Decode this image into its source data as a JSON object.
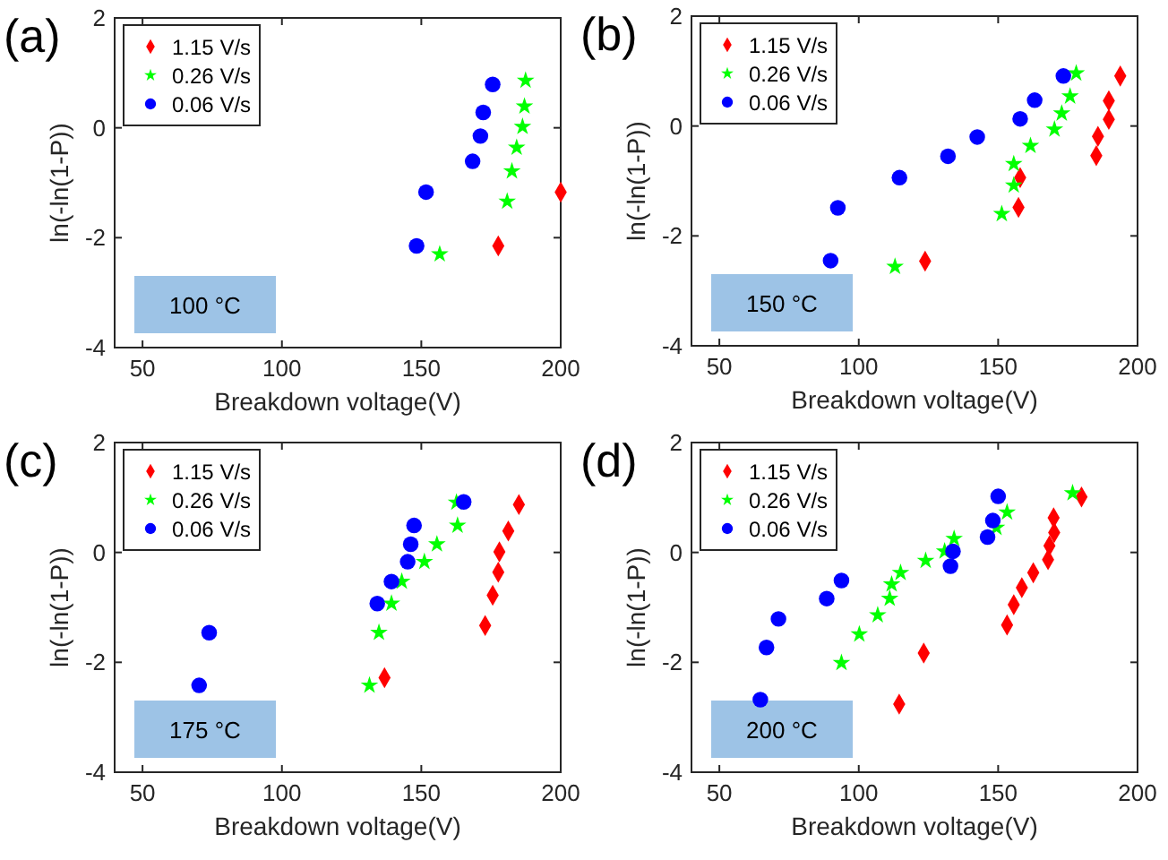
{
  "chart_data": [
    {
      "type": "scatter",
      "title": "(a)",
      "xlabel": "Breakdown voltage(V)",
      "ylabel": "ln(-ln(1-P))",
      "xlim": [
        40,
        200
      ],
      "ylim": [
        -4,
        2
      ],
      "xticks": [
        50,
        100,
        150,
        200
      ],
      "yticks": [
        -4,
        -2,
        0,
        2
      ],
      "legend": "top left",
      "grid": false,
      "annotations": [
        "100 °C"
      ],
      "series": [
        {
          "name": "1.15 V/s",
          "color": "#ff0000",
          "marker": "diamond",
          "x": [
            177.6,
            200
          ],
          "values": [
            -2.15,
            -1.17
          ]
        },
        {
          "name": "0.26 V/s",
          "color": "#00ff00",
          "marker": "star",
          "x": [
            156.6,
            180.8,
            182.5,
            184.2,
            186.3,
            187,
            187.4
          ],
          "values": [
            -2.3,
            -1.34,
            -0.79,
            -0.36,
            0.02,
            0.39,
            0.86
          ]
        },
        {
          "name": "0.06 V/s",
          "color": "#0000ff",
          "marker": "circle",
          "x": [
            148.3,
            151.7,
            168.4,
            171.2,
            172.2,
            175.6
          ],
          "values": [
            -2.15,
            -1.17,
            -0.61,
            -0.15,
            0.28,
            0.79
          ]
        }
      ]
    },
    {
      "type": "scatter",
      "title": "(b)",
      "xlabel": "Breakdown voltage(V)",
      "ylabel": "ln(-ln(1-P))",
      "xlim": [
        40,
        200
      ],
      "ylim": [
        -4,
        2
      ],
      "xticks": [
        50,
        100,
        150,
        200
      ],
      "yticks": [
        -4,
        -2,
        0,
        2
      ],
      "legend": "top left",
      "grid": false,
      "annotations": [
        "150 °C"
      ],
      "series": [
        {
          "name": "1.15 V/s",
          "color": "#ff0000",
          "marker": "diamond",
          "x": [
            123.8,
            157.3,
            157.9,
            185.2,
            185.8,
            189.7,
            189.7,
            193.8
          ],
          "values": [
            -2.46,
            -1.48,
            -0.94,
            -0.54,
            -0.19,
            0.12,
            0.46,
            0.91
          ]
        },
        {
          "name": "0.26 V/s",
          "color": "#00ff00",
          "marker": "star",
          "x": [
            113,
            151.3,
            155.6,
            155.6,
            161.6,
            170.2,
            172.8,
            175.8,
            178
          ],
          "values": [
            -2.56,
            -1.6,
            -1.08,
            -0.69,
            -0.36,
            -0.06,
            0.23,
            0.54,
            0.96
          ]
        },
        {
          "name": "0.06 V/s",
          "color": "#0000ff",
          "marker": "circle",
          "x": [
            89.9,
            92.5,
            114.6,
            132,
            142.5,
            157.9,
            163.1,
            173.4
          ],
          "values": [
            -2.45,
            -1.49,
            -0.94,
            -0.55,
            -0.2,
            0.13,
            0.47,
            0.91
          ]
        }
      ]
    },
    {
      "type": "scatter",
      "title": "(c)",
      "xlabel": "Breakdown voltage(V)",
      "ylabel": "ln(-ln(1-P))",
      "xlim": [
        40,
        200
      ],
      "ylim": [
        -4,
        2
      ],
      "xticks": [
        50,
        100,
        150,
        200
      ],
      "yticks": [
        -4,
        -2,
        0,
        2
      ],
      "legend": "top left",
      "grid": false,
      "annotations": [
        "175 °C"
      ],
      "series": [
        {
          "name": "1.15 V/s",
          "color": "#ff0000",
          "marker": "diamond",
          "x": [
            136.8,
            172.9,
            175.6,
            177.6,
            178,
            181.2,
            185
          ],
          "values": [
            -2.28,
            -1.33,
            -0.78,
            -0.36,
            0.01,
            0.39,
            0.87
          ]
        },
        {
          "name": "0.26 V/s",
          "color": "#00ff00",
          "marker": "star",
          "x": [
            131.4,
            134.8,
            139.3,
            143,
            151.1,
            155.6,
            163,
            162.6
          ],
          "values": [
            -2.42,
            -1.46,
            -0.93,
            -0.53,
            -0.17,
            0.15,
            0.49,
            0.91
          ]
        },
        {
          "name": "0.06 V/s",
          "color": "#0000ff",
          "marker": "circle",
          "x": [
            70.3,
            73.9,
            134.2,
            139.3,
            145.1,
            146.2,
            147.4,
            165.2
          ],
          "values": [
            -2.42,
            -1.46,
            -0.93,
            -0.53,
            -0.17,
            0.15,
            0.49,
            0.92
          ]
        }
      ]
    },
    {
      "type": "scatter",
      "title": "(d)",
      "xlabel": "Breakdown voltage(V)",
      "ylabel": "ln(-ln(1-P))",
      "xlim": [
        40,
        200
      ],
      "ylim": [
        -4,
        2
      ],
      "xticks": [
        50,
        100,
        150,
        200
      ],
      "yticks": [
        -4,
        -2,
        0,
        2
      ],
      "legend": "top left",
      "grid": false,
      "annotations": [
        "200 °C"
      ],
      "series": [
        {
          "name": "1.15 V/s",
          "color": "#ff0000",
          "marker": "diamond",
          "x": [
            114.5,
            123.3,
            153.2,
            155.6,
            158.5,
            162.6,
            167.9,
            168.4,
            170.1,
            169.9,
            179.9
          ],
          "values": [
            -2.76,
            -1.83,
            -1.32,
            -0.95,
            -0.64,
            -0.37,
            -0.13,
            0.12,
            0.36,
            0.63,
            1.01
          ]
        },
        {
          "name": "0.26 V/s",
          "color": "#00ff00",
          "marker": "star",
          "x": [
            93.8,
            100.2,
            106.8,
            111.1,
            111.8,
            115,
            124,
            130.8,
            134.2,
            149.4,
            153.2,
            176.7
          ],
          "values": [
            -2.01,
            -1.49,
            -1.14,
            -0.84,
            -0.58,
            -0.37,
            -0.15,
            0.02,
            0.25,
            0.45,
            0.73,
            1.08
          ]
        },
        {
          "name": "0.06 V/s",
          "color": "#0000ff",
          "marker": "circle",
          "x": [
            64.7,
            66.9,
            71.2,
            88.5,
            93.8,
            132.9,
            133.8,
            146.2,
            148.1,
            150
          ],
          "values": [
            -2.68,
            -1.73,
            -1.21,
            -0.84,
            -0.51,
            -0.25,
            0.02,
            0.28,
            0.58,
            1.02
          ]
        }
      ]
    }
  ]
}
